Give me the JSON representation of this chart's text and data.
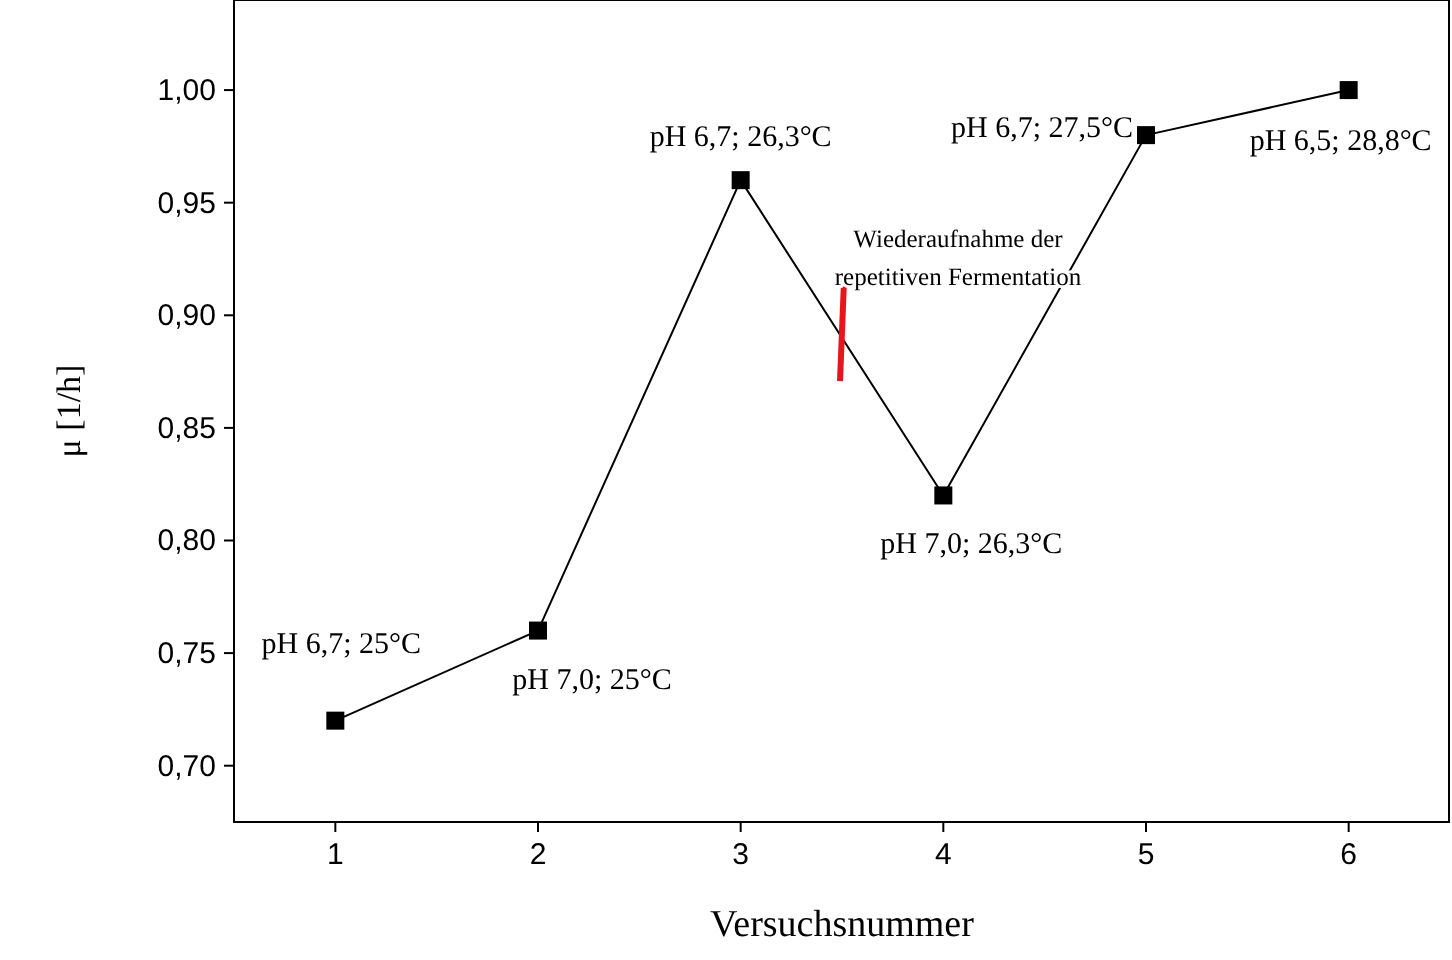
{
  "chart_data": {
    "type": "line",
    "xlabel": "Versuchsnummer",
    "ylabel": "μ [1/h]",
    "x": [
      1,
      2,
      3,
      4,
      5,
      6
    ],
    "series": [
      {
        "color": "#000000",
        "values": [
          0.72,
          0.76,
          0.96,
          0.82,
          0.98,
          1.0
        ]
      }
    ],
    "xlim": [
      0.5,
      6.5
    ],
    "xticks": [
      1,
      2,
      3,
      4,
      5,
      6
    ],
    "ylim": [
      0.675,
      1.04
    ],
    "yticks": [
      {
        "value": 0.7,
        "label": "0,70"
      },
      {
        "value": 0.75,
        "label": "0,75"
      },
      {
        "value": 0.8,
        "label": "0,80"
      },
      {
        "value": 0.85,
        "label": "0,85"
      },
      {
        "value": 0.9,
        "label": "0,90"
      },
      {
        "value": 0.95,
        "label": "0,95"
      },
      {
        "value": 1.0,
        "label": "1,00"
      }
    ],
    "marker": "square",
    "line_style": "solid",
    "grid": false,
    "annotations": [
      {
        "text": "pH 6,7; 25°C",
        "x": 1,
        "y": 0.72
      },
      {
        "text": "pH 7,0; 25°C",
        "x": 2,
        "y": 0.76
      },
      {
        "text": "pH 6,7; 26,3°C",
        "x": 3,
        "y": 0.96
      },
      {
        "text": "pH 7,0; 26,3°C",
        "x": 4,
        "y": 0.82
      },
      {
        "text": "pH 6,7; 27,5°C",
        "x": 5,
        "y": 0.98
      },
      {
        "text": "pH 6,5; 28,8°C",
        "x": 6,
        "y": 1.0
      },
      {
        "text": "Wiederaufnahme der\nrepetitiven Fermentation",
        "x": 3.5,
        "y": 0.893
      }
    ]
  }
}
